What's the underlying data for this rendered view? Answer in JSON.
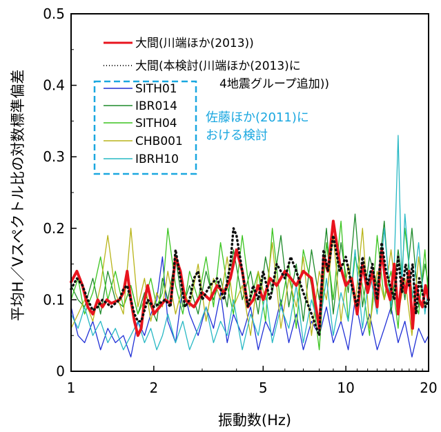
{
  "chart_data": {
    "type": "line",
    "title": "",
    "xlabel": "振動数(Hz)",
    "ylabel": "平均H／Vスペクトル比の対数標準偏差",
    "xscale": "log",
    "xlim": [
      1,
      20
    ],
    "ylim": [
      0,
      0.5
    ],
    "xticks": [
      1,
      2,
      5,
      10,
      20
    ],
    "xtick_labels": [
      "1",
      "2",
      "5",
      "10",
      "20"
    ],
    "yticks": [
      0,
      0.1,
      0.2,
      0.3,
      0.4,
      0.5
    ],
    "ytick_labels": [
      "0",
      "0.1",
      "0.2",
      "0.3",
      "0.4",
      "0.5"
    ],
    "grid": false,
    "legend_position": "top-left",
    "annotation": [
      "佐藤ほか(2011)に",
      "おける検討"
    ],
    "annotation_color": "#1aa7e0",
    "series": [
      {
        "name": "大間(川端ほか(2013))",
        "color": "#e8141e",
        "style": "solid",
        "width": 4,
        "x": [
          1.0,
          1.05,
          1.1,
          1.15,
          1.2,
          1.25,
          1.3,
          1.35,
          1.4,
          1.5,
          1.55,
          1.6,
          1.65,
          1.7,
          1.75,
          1.8,
          1.85,
          1.9,
          2.0,
          2.1,
          2.2,
          2.3,
          2.4,
          2.5,
          2.6,
          2.8,
          3.0,
          3.2,
          3.4,
          3.6,
          3.8,
          4.0,
          4.2,
          4.4,
          4.6,
          4.8,
          5.0,
          5.3,
          5.6,
          6.0,
          6.3,
          6.6,
          7.0,
          7.5,
          8.0,
          8.3,
          8.6,
          9.0,
          9.5,
          10.0,
          10.5,
          11.0,
          11.5,
          12.0,
          12.5,
          13.0,
          13.5,
          14.0,
          14.5,
          15.0,
          15.5,
          16.0,
          16.5,
          17.0,
          17.5,
          18.0,
          18.5,
          19.0,
          19.5,
          20.0
        ],
        "y": [
          0.125,
          0.14,
          0.12,
          0.09,
          0.08,
          0.1,
          0.09,
          0.1,
          0.095,
          0.1,
          0.11,
          0.14,
          0.1,
          0.07,
          0.05,
          0.06,
          0.1,
          0.12,
          0.08,
          0.09,
          0.1,
          0.095,
          0.16,
          0.14,
          0.1,
          0.09,
          0.11,
          0.1,
          0.12,
          0.11,
          0.13,
          0.17,
          0.14,
          0.09,
          0.1,
          0.12,
          0.1,
          0.13,
          0.12,
          0.14,
          0.13,
          0.12,
          0.14,
          0.13,
          0.06,
          0.16,
          0.14,
          0.21,
          0.15,
          0.12,
          0.13,
          0.08,
          0.15,
          0.11,
          0.14,
          0.09,
          0.17,
          0.12,
          0.1,
          0.15,
          0.08,
          0.13,
          0.11,
          0.14,
          0.06,
          0.12,
          0.1,
          0.09,
          0.12,
          0.1
        ]
      },
      {
        "name": "大間(本検討(川端ほか(2013)に4地震グループ追加))",
        "color": "#111111",
        "style": "dotted",
        "width": 3.5,
        "x": [
          1.0,
          1.05,
          1.1,
          1.15,
          1.2,
          1.25,
          1.3,
          1.35,
          1.4,
          1.5,
          1.55,
          1.6,
          1.65,
          1.7,
          1.75,
          1.8,
          1.9,
          2.0,
          2.1,
          2.2,
          2.3,
          2.4,
          2.5,
          2.6,
          2.7,
          2.8,
          2.9,
          3.0,
          3.2,
          3.4,
          3.6,
          3.8,
          3.9,
          4.0,
          4.2,
          4.4,
          4.6,
          4.8,
          5.0,
          5.3,
          5.6,
          6.0,
          6.3,
          6.6,
          7.0,
          7.5,
          8.0,
          8.3,
          8.6,
          9.0,
          9.5,
          10.0,
          10.5,
          11.0,
          11.5,
          12.0,
          12.5,
          13.0,
          13.5,
          14.0,
          14.5,
          15.0,
          15.5,
          16.0,
          16.5,
          17.0,
          17.5,
          18.0,
          18.5,
          19.0,
          19.5,
          20.0
        ],
        "y": [
          0.115,
          0.13,
          0.12,
          0.1,
          0.085,
          0.09,
          0.1,
          0.095,
          0.09,
          0.1,
          0.115,
          0.12,
          0.1,
          0.08,
          0.07,
          0.07,
          0.1,
          0.09,
          0.095,
          0.1,
          0.09,
          0.17,
          0.13,
          0.09,
          0.1,
          0.13,
          0.14,
          0.1,
          0.12,
          0.13,
          0.1,
          0.15,
          0.2,
          0.19,
          0.14,
          0.09,
          0.12,
          0.1,
          0.14,
          0.1,
          0.15,
          0.13,
          0.16,
          0.14,
          0.11,
          0.08,
          0.05,
          0.17,
          0.14,
          0.19,
          0.14,
          0.16,
          0.12,
          0.09,
          0.16,
          0.12,
          0.15,
          0.1,
          0.18,
          0.14,
          0.12,
          0.1,
          0.16,
          0.11,
          0.15,
          0.12,
          0.15,
          0.08,
          0.13,
          0.11,
          0.09,
          0.1
        ]
      },
      {
        "name": "SITH01",
        "color": "#1f2fd6",
        "style": "solid",
        "width": 1.3,
        "x": [
          1.0,
          1.06,
          1.12,
          1.2,
          1.28,
          1.36,
          1.45,
          1.55,
          1.65,
          1.75,
          1.85,
          1.95,
          2.05,
          2.15,
          2.25,
          2.4,
          2.55,
          2.7,
          2.9,
          3.1,
          3.3,
          3.5,
          3.7,
          3.9,
          4.2,
          4.5,
          4.8,
          5.1,
          5.4,
          5.8,
          6.2,
          6.6,
          7.0,
          7.5,
          8.0,
          8.5,
          9.0,
          9.6,
          10.2,
          10.8,
          11.5,
          12.2,
          13.0,
          13.8,
          14.6,
          15.5,
          16.4,
          17.4,
          18.4,
          19.4,
          20.0
        ],
        "y": [
          0.09,
          0.05,
          0.04,
          0.07,
          0.03,
          0.06,
          0.04,
          0.05,
          0.02,
          0.07,
          0.05,
          0.08,
          0.1,
          0.16,
          0.07,
          0.04,
          0.12,
          0.08,
          0.05,
          0.09,
          0.06,
          0.11,
          0.04,
          0.08,
          0.05,
          0.09,
          0.03,
          0.07,
          0.05,
          0.1,
          0.04,
          0.08,
          0.03,
          0.07,
          0.05,
          0.09,
          0.04,
          0.07,
          0.03,
          0.1,
          0.05,
          0.08,
          0.03,
          0.06,
          0.09,
          0.04,
          0.07,
          0.02,
          0.06,
          0.04,
          0.05
        ]
      },
      {
        "name": "IBR014",
        "color": "#1e8a2a",
        "style": "solid",
        "width": 1.3,
        "x": [
          1.0,
          1.06,
          1.12,
          1.2,
          1.28,
          1.36,
          1.45,
          1.55,
          1.65,
          1.75,
          1.85,
          1.95,
          2.05,
          2.15,
          2.25,
          2.4,
          2.55,
          2.7,
          2.9,
          3.1,
          3.3,
          3.5,
          3.7,
          3.9,
          4.2,
          4.5,
          4.8,
          5.1,
          5.4,
          5.8,
          6.2,
          6.6,
          7.0,
          7.5,
          8.0,
          8.5,
          9.0,
          9.6,
          10.2,
          10.8,
          11.5,
          12.2,
          13.0,
          13.8,
          14.6,
          15.5,
          16.4,
          17.4,
          18.4,
          19.4,
          20.0
        ],
        "y": [
          0.12,
          0.1,
          0.09,
          0.13,
          0.08,
          0.14,
          0.1,
          0.09,
          0.12,
          0.08,
          0.11,
          0.09,
          0.07,
          0.13,
          0.1,
          0.16,
          0.09,
          0.12,
          0.08,
          0.14,
          0.1,
          0.13,
          0.09,
          0.17,
          0.1,
          0.14,
          0.08,
          0.16,
          0.11,
          0.19,
          0.09,
          0.15,
          0.07,
          0.17,
          0.1,
          0.2,
          0.08,
          0.18,
          0.11,
          0.22,
          0.09,
          0.16,
          0.12,
          0.21,
          0.08,
          0.17,
          0.1,
          0.2,
          0.09,
          0.15,
          0.12
        ]
      },
      {
        "name": "SITH04",
        "color": "#3ac41f",
        "style": "solid",
        "width": 1.3,
        "x": [
          1.0,
          1.06,
          1.12,
          1.2,
          1.28,
          1.36,
          1.45,
          1.55,
          1.65,
          1.75,
          1.85,
          1.95,
          2.05,
          2.15,
          2.25,
          2.4,
          2.55,
          2.7,
          2.9,
          3.1,
          3.3,
          3.5,
          3.7,
          3.9,
          4.2,
          4.5,
          4.8,
          5.1,
          5.4,
          5.8,
          6.2,
          6.6,
          7.0,
          7.5,
          8.0,
          8.5,
          9.0,
          9.6,
          10.2,
          10.8,
          11.5,
          12.2,
          13.0,
          13.8,
          14.6,
          15.5,
          16.4,
          17.4,
          18.4,
          19.4,
          20.0
        ],
        "y": [
          0.1,
          0.13,
          0.08,
          0.11,
          0.16,
          0.1,
          0.14,
          0.09,
          0.12,
          0.08,
          0.1,
          0.13,
          0.09,
          0.11,
          0.2,
          0.12,
          0.08,
          0.14,
          0.1,
          0.16,
          0.09,
          0.18,
          0.12,
          0.08,
          0.19,
          0.1,
          0.14,
          0.07,
          0.2,
          0.09,
          0.15,
          0.06,
          0.17,
          0.12,
          0.03,
          0.18,
          0.1,
          0.21,
          0.07,
          0.16,
          0.12,
          0.05,
          0.19,
          0.1,
          0.14,
          0.06,
          0.2,
          0.11,
          0.08,
          0.17,
          0.1
        ]
      },
      {
        "name": "CHB001",
        "color": "#b8b418",
        "style": "solid",
        "width": 1.3,
        "x": [
          1.0,
          1.06,
          1.12,
          1.2,
          1.28,
          1.36,
          1.45,
          1.55,
          1.65,
          1.75,
          1.85,
          1.95,
          2.05,
          2.15,
          2.25,
          2.4,
          2.55,
          2.7,
          2.9,
          3.1,
          3.3,
          3.5,
          3.7,
          3.9,
          4.2,
          4.5,
          4.8,
          5.1,
          5.4,
          5.8,
          6.2,
          6.6,
          7.0,
          7.5,
          8.0,
          8.5,
          9.0,
          9.6,
          10.2,
          10.8,
          11.5,
          12.2,
          13.0,
          13.8,
          14.6,
          15.5,
          16.4,
          17.4,
          18.4,
          19.4,
          20.0
        ],
        "y": [
          0.06,
          0.08,
          0.1,
          0.07,
          0.12,
          0.19,
          0.11,
          0.08,
          0.2,
          0.09,
          0.13,
          0.07,
          0.11,
          0.09,
          0.14,
          0.08,
          0.12,
          0.09,
          0.15,
          0.07,
          0.13,
          0.1,
          0.16,
          0.09,
          0.12,
          0.05,
          0.14,
          0.1,
          0.18,
          0.06,
          0.13,
          0.09,
          0.16,
          0.05,
          0.14,
          0.1,
          0.19,
          0.07,
          0.15,
          0.09,
          0.2,
          0.06,
          0.14,
          0.1,
          0.17,
          0.08,
          0.13,
          0.05,
          0.16,
          0.09,
          0.11
        ]
      },
      {
        "name": "IBRH10",
        "color": "#27b8c4",
        "style": "solid",
        "width": 1.3,
        "x": [
          1.0,
          1.06,
          1.12,
          1.2,
          1.28,
          1.36,
          1.45,
          1.55,
          1.65,
          1.75,
          1.85,
          1.95,
          2.05,
          2.15,
          2.25,
          2.4,
          2.55,
          2.7,
          2.9,
          3.1,
          3.3,
          3.5,
          3.7,
          3.9,
          4.2,
          4.5,
          4.8,
          5.1,
          5.4,
          5.8,
          6.2,
          6.6,
          7.0,
          7.5,
          8.0,
          8.5,
          9.0,
          9.6,
          10.2,
          10.8,
          11.5,
          12.2,
          13.0,
          13.8,
          14.6,
          15.0,
          15.5,
          16.0,
          16.4,
          17.4,
          18.4,
          19.4,
          20.0
        ],
        "y": [
          0.08,
          0.06,
          0.09,
          0.05,
          0.07,
          0.04,
          0.06,
          0.03,
          0.05,
          0.07,
          0.04,
          0.06,
          0.03,
          0.05,
          0.08,
          0.04,
          0.07,
          0.03,
          0.06,
          0.09,
          0.04,
          0.07,
          0.05,
          0.1,
          0.03,
          0.08,
          0.05,
          0.11,
          0.04,
          0.09,
          0.06,
          0.12,
          0.04,
          0.1,
          0.06,
          0.13,
          0.05,
          0.11,
          0.07,
          0.17,
          0.06,
          0.14,
          0.08,
          0.2,
          0.09,
          0.15,
          0.33,
          0.12,
          0.22,
          0.1,
          0.18,
          0.08,
          0.12
        ]
      }
    ]
  }
}
